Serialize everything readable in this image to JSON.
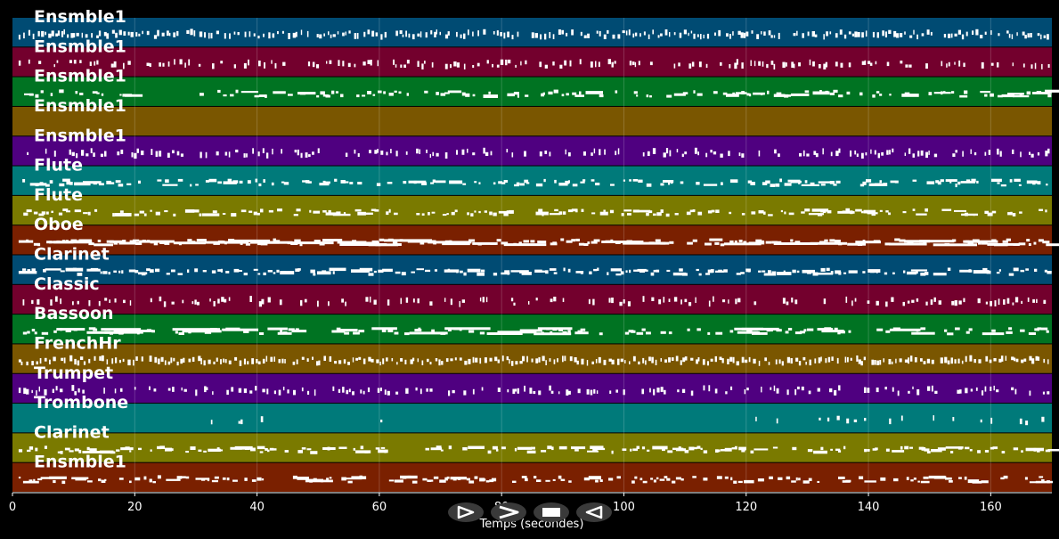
{
  "axis": {
    "xlabel": "Temps (secondes)",
    "xlim": [
      0,
      170
    ],
    "ticks": [
      0,
      20,
      40,
      60,
      80,
      100,
      120,
      140,
      160
    ]
  },
  "tracks": [
    {
      "name": "Ensmble1",
      "color": "#004b73",
      "density": 0.9,
      "style": "ticks",
      "gaps": []
    },
    {
      "name": "Ensmble1",
      "color": "#73002d",
      "density": 0.55,
      "style": "ticks",
      "gaps": []
    },
    {
      "name": "Ensmble1",
      "color": "#007322",
      "density": 0.6,
      "style": "dashes",
      "gaps": [
        [
          19,
          30
        ]
      ]
    },
    {
      "name": "Ensmble1",
      "color": "#7a5600",
      "density": 0.1,
      "style": "ticks",
      "gaps": [
        [
          0,
          22
        ],
        [
          31,
          115
        ],
        [
          124,
          170
        ]
      ]
    },
    {
      "name": "Ensmble1",
      "color": "#4f0080",
      "density": 0.55,
      "style": "ticks",
      "gaps": []
    },
    {
      "name": "Flute",
      "color": "#007a7a",
      "density": 0.55,
      "style": "dashes",
      "gaps": []
    },
    {
      "name": "Flute",
      "color": "#7a7a00",
      "density": 0.6,
      "style": "dashes",
      "gaps": []
    },
    {
      "name": "Oboe",
      "color": "#7a2000",
      "density": 0.7,
      "style": "bars",
      "gaps": []
    },
    {
      "name": "Clarinet",
      "color": "#004b73",
      "density": 0.65,
      "style": "dashes",
      "gaps": []
    },
    {
      "name": "Classic",
      "color": "#73002d",
      "density": 0.5,
      "style": "ticks",
      "gaps": []
    },
    {
      "name": "Bassoon",
      "color": "#007322",
      "density": 0.55,
      "style": "bars",
      "gaps": []
    },
    {
      "name": "FrenchHr",
      "color": "#7a5600",
      "density": 0.95,
      "style": "ticks",
      "gaps": []
    },
    {
      "name": "Trumpet",
      "color": "#4f0080",
      "density": 0.55,
      "style": "ticks",
      "gaps": []
    },
    {
      "name": "Trombone",
      "color": "#007a7a",
      "density": 0.15,
      "style": "ticks",
      "gaps": [
        [
          0,
          30
        ],
        [
          42,
          58
        ],
        [
          63,
          118
        ]
      ]
    },
    {
      "name": "Clarinet",
      "color": "#7a7a00",
      "density": 0.6,
      "style": "dashes",
      "gaps": []
    },
    {
      "name": "Ensmble1",
      "color": "#7a2000",
      "density": 0.6,
      "style": "dashes",
      "gaps": []
    }
  ],
  "controls": [
    {
      "name": "play-forward-button",
      "icon": "play-outline-icon"
    },
    {
      "name": "next-button",
      "icon": "chevron-right-icon"
    },
    {
      "name": "stop-button",
      "icon": "stop-icon"
    },
    {
      "name": "play-reverse-button",
      "icon": "play-reverse-icon"
    }
  ]
}
